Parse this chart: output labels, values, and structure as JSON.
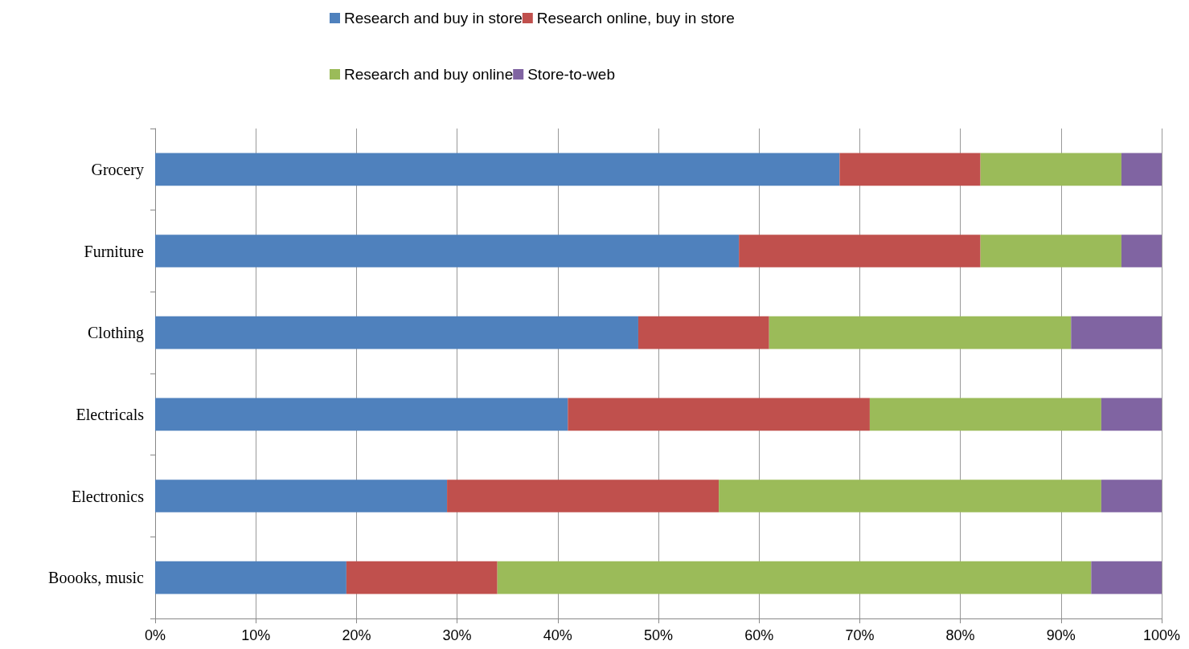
{
  "chart_data": {
    "type": "bar",
    "orientation": "horizontal",
    "stacked": true,
    "categories": [
      "Grocery",
      "Furniture",
      "Clothing",
      "Electricals",
      "Electronics",
      "Boooks, music"
    ],
    "series": [
      {
        "name": "Research and buy in store",
        "color": "#4f81bd",
        "values": [
          68,
          58,
          48,
          41,
          29,
          19
        ]
      },
      {
        "name": "Research online, buy in store",
        "color": "#c0504d",
        "values": [
          14,
          24,
          13,
          30,
          27,
          15
        ]
      },
      {
        "name": "Research and buy online",
        "color": "#9bbb59",
        "values": [
          14,
          14,
          30,
          23,
          38,
          59
        ]
      },
      {
        "name": "Store-to-web",
        "color": "#8064a2",
        "values": [
          4,
          4,
          9,
          6,
          6,
          7
        ]
      }
    ],
    "xlim": [
      0,
      100
    ],
    "xticks": [
      {
        "value": 0,
        "label": "0%"
      },
      {
        "value": 10,
        "label": "10%"
      },
      {
        "value": 20,
        "label": "20%"
      },
      {
        "value": 30,
        "label": "30%"
      },
      {
        "value": 40,
        "label": "40%"
      },
      {
        "value": 50,
        "label": "50%"
      },
      {
        "value": 60,
        "label": "60%"
      },
      {
        "value": 70,
        "label": "70%"
      },
      {
        "value": 80,
        "label": "80%"
      },
      {
        "value": 90,
        "label": "90%"
      },
      {
        "value": 100,
        "label": "100%"
      }
    ],
    "grid": "x",
    "legend": "top"
  }
}
